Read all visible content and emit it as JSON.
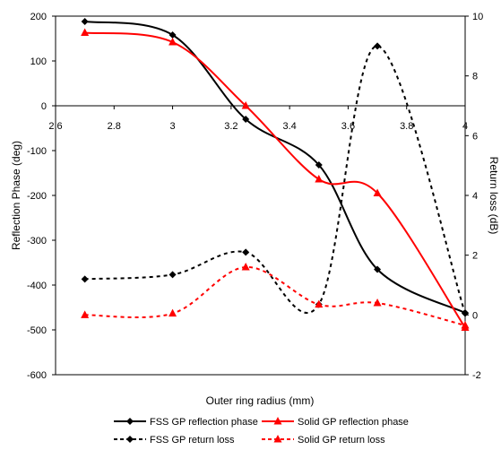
{
  "chart_data": {
    "type": "line",
    "title": "",
    "xlabel": "Outer ring radius (mm)",
    "ylabel": "Reflection Phase (deg)",
    "y2label": "Return loss (dB)",
    "xlim": [
      2.6,
      4
    ],
    "ylim": [
      -600,
      200
    ],
    "y2lim": [
      -2,
      10
    ],
    "x_ticks": [
      "2.6",
      "2.8",
      "3",
      "3.2",
      "3.4",
      "3.6",
      "3.8",
      "4"
    ],
    "y_ticks": [
      "200",
      "100",
      "0",
      "-100",
      "-200",
      "-300",
      "-400",
      "-500",
      "-600"
    ],
    "y2_ticks": [
      "10",
      "8",
      "6",
      "4",
      "2",
      "0",
      "-2"
    ],
    "legend_position": "bottom",
    "series": [
      {
        "name": "FSS GP reflection phase",
        "axis": "left",
        "color": "#000000",
        "dashed": false,
        "marker": "diamond",
        "points": [
          [
            2.7,
            188
          ],
          [
            3.0,
            158
          ],
          [
            3.25,
            -30
          ],
          [
            3.5,
            -132
          ],
          [
            3.7,
            -365
          ],
          [
            4.0,
            -462
          ]
        ]
      },
      {
        "name": "Solid GP reflection phase",
        "axis": "left",
        "color": "#ff0000",
        "dashed": false,
        "marker": "triangle",
        "points": [
          [
            2.7,
            163
          ],
          [
            3.0,
            142
          ],
          [
            3.25,
            0
          ],
          [
            3.5,
            -164
          ],
          [
            3.7,
            -195
          ],
          [
            4.0,
            -495
          ]
        ]
      },
      {
        "name": "FSS GP return loss",
        "axis": "right",
        "color": "#000000",
        "dashed": true,
        "marker": "diamond",
        "points": [
          [
            2.7,
            1.2
          ],
          [
            3.0,
            1.35
          ],
          [
            3.25,
            2.1
          ],
          [
            3.5,
            0.35
          ],
          [
            3.7,
            9.0
          ],
          [
            4.0,
            0.05
          ]
        ]
      },
      {
        "name": "Solid GP return loss",
        "axis": "right",
        "color": "#ff0000",
        "dashed": true,
        "marker": "triangle",
        "points": [
          [
            2.7,
            0.0
          ],
          [
            3.0,
            0.05
          ],
          [
            3.25,
            1.6
          ],
          [
            3.5,
            0.35
          ],
          [
            3.7,
            0.4
          ],
          [
            4.0,
            -0.35
          ]
        ]
      }
    ]
  }
}
